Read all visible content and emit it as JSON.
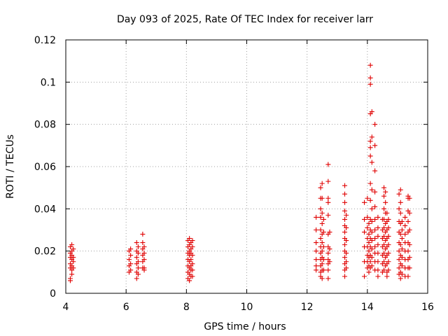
{
  "chart_data": {
    "type": "scatter",
    "title": "Day 093 of 2025, Rate Of TEC Index for receiver larr",
    "xlabel": "GPS time / hours",
    "ylabel": "ROTI / TECUs",
    "xlim": [
      4,
      16
    ],
    "ylim": [
      0,
      0.12
    ],
    "xticks": [
      "4",
      "6",
      "8",
      "10",
      "12",
      "14",
      "16"
    ],
    "yticks": [
      "0",
      "0.02",
      "0.04",
      "0.06",
      "0.08",
      "0.1",
      "0.12"
    ],
    "grid": true,
    "marker": "plus",
    "color": "#e00000",
    "series": [
      {
        "name": "ROTI",
        "points": [
          [
            4.15,
            0.022
          ],
          [
            4.15,
            0.019
          ],
          [
            4.15,
            0.017
          ],
          [
            4.15,
            0.014
          ],
          [
            4.15,
            0.012
          ],
          [
            4.15,
            0.007
          ],
          [
            4.15,
            0.006
          ],
          [
            4.2,
            0.023
          ],
          [
            4.2,
            0.02
          ],
          [
            4.2,
            0.018
          ],
          [
            4.2,
            0.016
          ],
          [
            4.2,
            0.013
          ],
          [
            4.2,
            0.011
          ],
          [
            4.2,
            0.009
          ],
          [
            4.25,
            0.021
          ],
          [
            4.25,
            0.017
          ],
          [
            4.25,
            0.015
          ],
          [
            4.25,
            0.012
          ],
          [
            6.1,
            0.02
          ],
          [
            6.1,
            0.016
          ],
          [
            6.1,
            0.013
          ],
          [
            6.1,
            0.01
          ],
          [
            6.15,
            0.021
          ],
          [
            6.15,
            0.018
          ],
          [
            6.15,
            0.014
          ],
          [
            6.15,
            0.011
          ],
          [
            6.35,
            0.024
          ],
          [
            6.35,
            0.02
          ],
          [
            6.35,
            0.017
          ],
          [
            6.35,
            0.014
          ],
          [
            6.35,
            0.01
          ],
          [
            6.35,
            0.007
          ],
          [
            6.4,
            0.022
          ],
          [
            6.4,
            0.019
          ],
          [
            6.4,
            0.015
          ],
          [
            6.4,
            0.012
          ],
          [
            6.4,
            0.009
          ],
          [
            6.55,
            0.028
          ],
          [
            6.55,
            0.024
          ],
          [
            6.55,
            0.021
          ],
          [
            6.55,
            0.018
          ],
          [
            6.55,
            0.015
          ],
          [
            6.55,
            0.012
          ],
          [
            6.6,
            0.022
          ],
          [
            6.6,
            0.019
          ],
          [
            6.6,
            0.016
          ],
          [
            6.6,
            0.012
          ],
          [
            6.6,
            0.011
          ],
          [
            8.05,
            0.025
          ],
          [
            8.05,
            0.022
          ],
          [
            8.05,
            0.019
          ],
          [
            8.05,
            0.016
          ],
          [
            8.05,
            0.013
          ],
          [
            8.05,
            0.01
          ],
          [
            8.05,
            0.007
          ],
          [
            8.1,
            0.026
          ],
          [
            8.1,
            0.023
          ],
          [
            8.1,
            0.02
          ],
          [
            8.1,
            0.018
          ],
          [
            8.1,
            0.015
          ],
          [
            8.1,
            0.012
          ],
          [
            8.1,
            0.009
          ],
          [
            8.1,
            0.006
          ],
          [
            8.15,
            0.024
          ],
          [
            8.15,
            0.021
          ],
          [
            8.15,
            0.019
          ],
          [
            8.15,
            0.016
          ],
          [
            8.15,
            0.013
          ],
          [
            8.15,
            0.011
          ],
          [
            8.15,
            0.008
          ],
          [
            8.2,
            0.025
          ],
          [
            8.2,
            0.022
          ],
          [
            8.2,
            0.018
          ],
          [
            8.2,
            0.014
          ],
          [
            8.2,
            0.011
          ],
          [
            8.2,
            0.008
          ],
          [
            12.3,
            0.036
          ],
          [
            12.3,
            0.03
          ],
          [
            12.3,
            0.024
          ],
          [
            12.3,
            0.02
          ],
          [
            12.3,
            0.016
          ],
          [
            12.3,
            0.013
          ],
          [
            12.3,
            0.011
          ],
          [
            12.45,
            0.05
          ],
          [
            12.45,
            0.045
          ],
          [
            12.45,
            0.04
          ],
          [
            12.45,
            0.036
          ],
          [
            12.45,
            0.03
          ],
          [
            12.45,
            0.026
          ],
          [
            12.45,
            0.022
          ],
          [
            12.45,
            0.019
          ],
          [
            12.45,
            0.016
          ],
          [
            12.45,
            0.013
          ],
          [
            12.45,
            0.01
          ],
          [
            12.45,
            0.008
          ],
          [
            12.5,
            0.052
          ],
          [
            12.5,
            0.045
          ],
          [
            12.5,
            0.038
          ],
          [
            12.5,
            0.033
          ],
          [
            12.5,
            0.028
          ],
          [
            12.5,
            0.024
          ],
          [
            12.5,
            0.02
          ],
          [
            12.5,
            0.017
          ],
          [
            12.5,
            0.014
          ],
          [
            12.5,
            0.011
          ],
          [
            12.5,
            0.007
          ],
          [
            12.55,
            0.035
          ],
          [
            12.55,
            0.029
          ],
          [
            12.55,
            0.022
          ],
          [
            12.55,
            0.016
          ],
          [
            12.55,
            0.011
          ],
          [
            12.7,
            0.061
          ],
          [
            12.7,
            0.053
          ],
          [
            12.7,
            0.045
          ],
          [
            12.7,
            0.043
          ],
          [
            12.7,
            0.037
          ],
          [
            12.7,
            0.028
          ],
          [
            12.7,
            0.022
          ],
          [
            12.7,
            0.019
          ],
          [
            12.7,
            0.016
          ],
          [
            12.7,
            0.014
          ],
          [
            12.7,
            0.011
          ],
          [
            12.7,
            0.007
          ],
          [
            12.75,
            0.029
          ],
          [
            12.75,
            0.021
          ],
          [
            12.75,
            0.015
          ],
          [
            13.25,
            0.051
          ],
          [
            13.25,
            0.047
          ],
          [
            13.25,
            0.043
          ],
          [
            13.25,
            0.039
          ],
          [
            13.25,
            0.035
          ],
          [
            13.25,
            0.032
          ],
          [
            13.25,
            0.029
          ],
          [
            13.25,
            0.026
          ],
          [
            13.25,
            0.023
          ],
          [
            13.25,
            0.02
          ],
          [
            13.25,
            0.017
          ],
          [
            13.25,
            0.014
          ],
          [
            13.25,
            0.011
          ],
          [
            13.25,
            0.008
          ],
          [
            13.3,
            0.037
          ],
          [
            13.3,
            0.031
          ],
          [
            13.3,
            0.025
          ],
          [
            13.3,
            0.019
          ],
          [
            13.3,
            0.015
          ],
          [
            13.3,
            0.012
          ],
          [
            13.9,
            0.043
          ],
          [
            13.9,
            0.035
          ],
          [
            13.9,
            0.029
          ],
          [
            13.9,
            0.022
          ],
          [
            13.9,
            0.015
          ],
          [
            13.9,
            0.008
          ],
          [
            14.0,
            0.045
          ],
          [
            14.0,
            0.036
          ],
          [
            14.0,
            0.031
          ],
          [
            14.0,
            0.026
          ],
          [
            14.0,
            0.022
          ],
          [
            14.0,
            0.018
          ],
          [
            14.0,
            0.015
          ],
          [
            14.0,
            0.012
          ],
          [
            14.05,
            0.033
          ],
          [
            14.05,
            0.028
          ],
          [
            14.05,
            0.024
          ],
          [
            14.05,
            0.02
          ],
          [
            14.05,
            0.017
          ],
          [
            14.05,
            0.013
          ],
          [
            14.05,
            0.01
          ],
          [
            14.1,
            0.108
          ],
          [
            14.1,
            0.102
          ],
          [
            14.1,
            0.099
          ],
          [
            14.1,
            0.085
          ],
          [
            14.1,
            0.072
          ],
          [
            14.1,
            0.069
          ],
          [
            14.1,
            0.065
          ],
          [
            14.1,
            0.052
          ],
          [
            14.1,
            0.044
          ],
          [
            14.1,
            0.035
          ],
          [
            14.1,
            0.03
          ],
          [
            14.1,
            0.026
          ],
          [
            14.1,
            0.022
          ],
          [
            14.1,
            0.018
          ],
          [
            14.1,
            0.015
          ],
          [
            14.1,
            0.012
          ],
          [
            14.15,
            0.086
          ],
          [
            14.15,
            0.074
          ],
          [
            14.15,
            0.062
          ],
          [
            14.15,
            0.049
          ],
          [
            14.15,
            0.04
          ],
          [
            14.15,
            0.034
          ],
          [
            14.15,
            0.029
          ],
          [
            14.15,
            0.025
          ],
          [
            14.15,
            0.021
          ],
          [
            14.15,
            0.017
          ],
          [
            14.15,
            0.013
          ],
          [
            14.25,
            0.08
          ],
          [
            14.25,
            0.07
          ],
          [
            14.25,
            0.058
          ],
          [
            14.25,
            0.048
          ],
          [
            14.25,
            0.041
          ],
          [
            14.25,
            0.035
          ],
          [
            14.25,
            0.03
          ],
          [
            14.25,
            0.026
          ],
          [
            14.25,
            0.022
          ],
          [
            14.25,
            0.019
          ],
          [
            14.25,
            0.015
          ],
          [
            14.25,
            0.011
          ],
          [
            14.35,
            0.036
          ],
          [
            14.35,
            0.031
          ],
          [
            14.35,
            0.027
          ],
          [
            14.35,
            0.023
          ],
          [
            14.35,
            0.019
          ],
          [
            14.35,
            0.015
          ],
          [
            14.35,
            0.011
          ],
          [
            14.35,
            0.008
          ],
          [
            14.5,
            0.035
          ],
          [
            14.5,
            0.03
          ],
          [
            14.5,
            0.026
          ],
          [
            14.5,
            0.022
          ],
          [
            14.5,
            0.018
          ],
          [
            14.5,
            0.014
          ],
          [
            14.5,
            0.01
          ],
          [
            14.55,
            0.05
          ],
          [
            14.55,
            0.046
          ],
          [
            14.55,
            0.04
          ],
          [
            14.55,
            0.035
          ],
          [
            14.55,
            0.031
          ],
          [
            14.55,
            0.027
          ],
          [
            14.55,
            0.023
          ],
          [
            14.55,
            0.019
          ],
          [
            14.55,
            0.015
          ],
          [
            14.55,
            0.011
          ],
          [
            14.6,
            0.048
          ],
          [
            14.6,
            0.043
          ],
          [
            14.6,
            0.038
          ],
          [
            14.6,
            0.033
          ],
          [
            14.6,
            0.029
          ],
          [
            14.6,
            0.025
          ],
          [
            14.6,
            0.021
          ],
          [
            14.6,
            0.017
          ],
          [
            14.6,
            0.013
          ],
          [
            14.65,
            0.038
          ],
          [
            14.65,
            0.034
          ],
          [
            14.65,
            0.03
          ],
          [
            14.65,
            0.026
          ],
          [
            14.65,
            0.022
          ],
          [
            14.65,
            0.018
          ],
          [
            14.65,
            0.014
          ],
          [
            14.65,
            0.01
          ],
          [
            14.65,
            0.008
          ],
          [
            14.7,
            0.035
          ],
          [
            14.7,
            0.031
          ],
          [
            14.7,
            0.027
          ],
          [
            14.7,
            0.023
          ],
          [
            14.7,
            0.019
          ],
          [
            14.7,
            0.015
          ],
          [
            14.7,
            0.011
          ],
          [
            15.05,
            0.047
          ],
          [
            15.05,
            0.04
          ],
          [
            15.05,
            0.034
          ],
          [
            15.05,
            0.029
          ],
          [
            15.05,
            0.024
          ],
          [
            15.05,
            0.02
          ],
          [
            15.05,
            0.016
          ],
          [
            15.05,
            0.012
          ],
          [
            15.05,
            0.009
          ],
          [
            15.1,
            0.049
          ],
          [
            15.1,
            0.043
          ],
          [
            15.1,
            0.038
          ],
          [
            15.1,
            0.033
          ],
          [
            15.1,
            0.028
          ],
          [
            15.1,
            0.023
          ],
          [
            15.1,
            0.018
          ],
          [
            15.1,
            0.014
          ],
          [
            15.1,
            0.01
          ],
          [
            15.1,
            0.007
          ],
          [
            15.15,
            0.034
          ],
          [
            15.15,
            0.03
          ],
          [
            15.15,
            0.026
          ],
          [
            15.15,
            0.021
          ],
          [
            15.15,
            0.017
          ],
          [
            15.15,
            0.013
          ],
          [
            15.15,
            0.009
          ],
          [
            15.25,
            0.036
          ],
          [
            15.25,
            0.032
          ],
          [
            15.25,
            0.028
          ],
          [
            15.25,
            0.024
          ],
          [
            15.25,
            0.02
          ],
          [
            15.25,
            0.016
          ],
          [
            15.25,
            0.012
          ],
          [
            15.25,
            0.008
          ],
          [
            15.35,
            0.046
          ],
          [
            15.35,
            0.045
          ],
          [
            15.35,
            0.039
          ],
          [
            15.35,
            0.034
          ],
          [
            15.35,
            0.029
          ],
          [
            15.35,
            0.024
          ],
          [
            15.35,
            0.02
          ],
          [
            15.35,
            0.016
          ],
          [
            15.35,
            0.012
          ],
          [
            15.35,
            0.008
          ],
          [
            15.4,
            0.045
          ],
          [
            15.4,
            0.038
          ],
          [
            15.4,
            0.03
          ],
          [
            15.4,
            0.023
          ],
          [
            15.4,
            0.017
          ],
          [
            15.4,
            0.012
          ]
        ]
      }
    ]
  }
}
